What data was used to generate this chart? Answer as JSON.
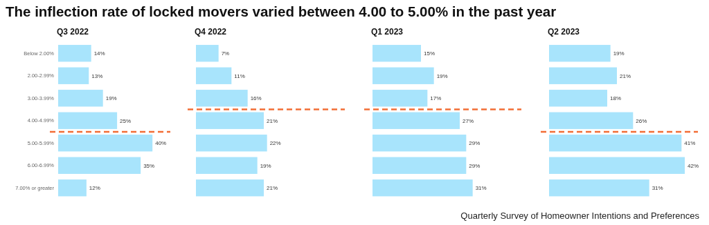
{
  "chart_data": [
    {
      "type": "bar",
      "orientation": "horizontal",
      "title": "Q3 2022",
      "categories": [
        "Below 2.00%",
        "2.00-2.99%",
        "3.00-3.99%",
        "4.00-4.99%",
        "5.00-5.99%",
        "6.00-6.99%",
        "7.00% or greater"
      ],
      "values": [
        14,
        13,
        19,
        25,
        40,
        35,
        12
      ],
      "value_labels": [
        "14%",
        "13%",
        "19%",
        "25%",
        "40%",
        "35%",
        "12%"
      ],
      "color": "#a8e4fc",
      "tick_labels": "y",
      "ref_lines": [
        {
          "axis": "y",
          "value": "5.00-5.99%",
          "color": "#f26d35",
          "line_style": "dashed"
        }
      ],
      "annotations": [
        "The inflection rate of locked movers varied between 4.00 to 5.00% in the past year",
        "Quarterly Survey of Homeowner Intentions and Preferences"
      ]
    },
    {
      "type": "bar",
      "orientation": "horizontal",
      "title": "Q4 2022",
      "categories": [
        "Below 2.00%",
        "2.00-2.99%",
        "3.00-3.99%",
        "4.00-4.99%",
        "5.00-5.99%",
        "6.00-6.99%",
        "7.00% or greater"
      ],
      "values": [
        7,
        11,
        16,
        21,
        22,
        19,
        21
      ],
      "value_labels": [
        "7%",
        "11%",
        "16%",
        "21%",
        "22%",
        "19%",
        "21%"
      ],
      "color": "#a8e4fc",
      "tick_labels": false,
      "ref_lines": [
        {
          "axis": "y",
          "value": "4.00-4.99%",
          "color": "#f26d35",
          "line_style": "dashed"
        }
      ]
    },
    {
      "type": "bar",
      "orientation": "horizontal",
      "title": "Q1 2023",
      "categories": [
        "Below 2.00%",
        "2.00-2.99%",
        "3.00-3.99%",
        "4.00-4.99%",
        "5.00-5.99%",
        "6.00-6.99%",
        "7.00% or greater"
      ],
      "values": [
        15,
        19,
        17,
        27,
        29,
        29,
        31
      ],
      "value_labels": [
        "15%",
        "19%",
        "17%",
        "27%",
        "29%",
        "29%",
        "31%"
      ],
      "color": "#a8e4fc",
      "tick_labels": false,
      "ref_lines": [
        {
          "axis": "y",
          "value": "4.00-4.99%",
          "color": "#f26d35",
          "line_style": "dashed"
        }
      ]
    },
    {
      "type": "bar",
      "orientation": "horizontal",
      "title": "Q2 2023",
      "categories": [
        "Below 2.00%",
        "2.00-2.99%",
        "3.00-3.99%",
        "4.00-4.99%",
        "5.00-5.99%",
        "6.00-6.99%",
        "7.00% or greater"
      ],
      "values": [
        19,
        21,
        18,
        26,
        41,
        42,
        31
      ],
      "value_labels": [
        "19%",
        "21%",
        "18%",
        "26%",
        "41%",
        "42%",
        "31%"
      ],
      "color": "#a8e4fc",
      "tick_labels": false,
      "ref_lines": [
        {
          "axis": "y",
          "value": "5.00-5.99%",
          "color": "#f26d35",
          "line_style": "dashed"
        }
      ]
    }
  ]
}
